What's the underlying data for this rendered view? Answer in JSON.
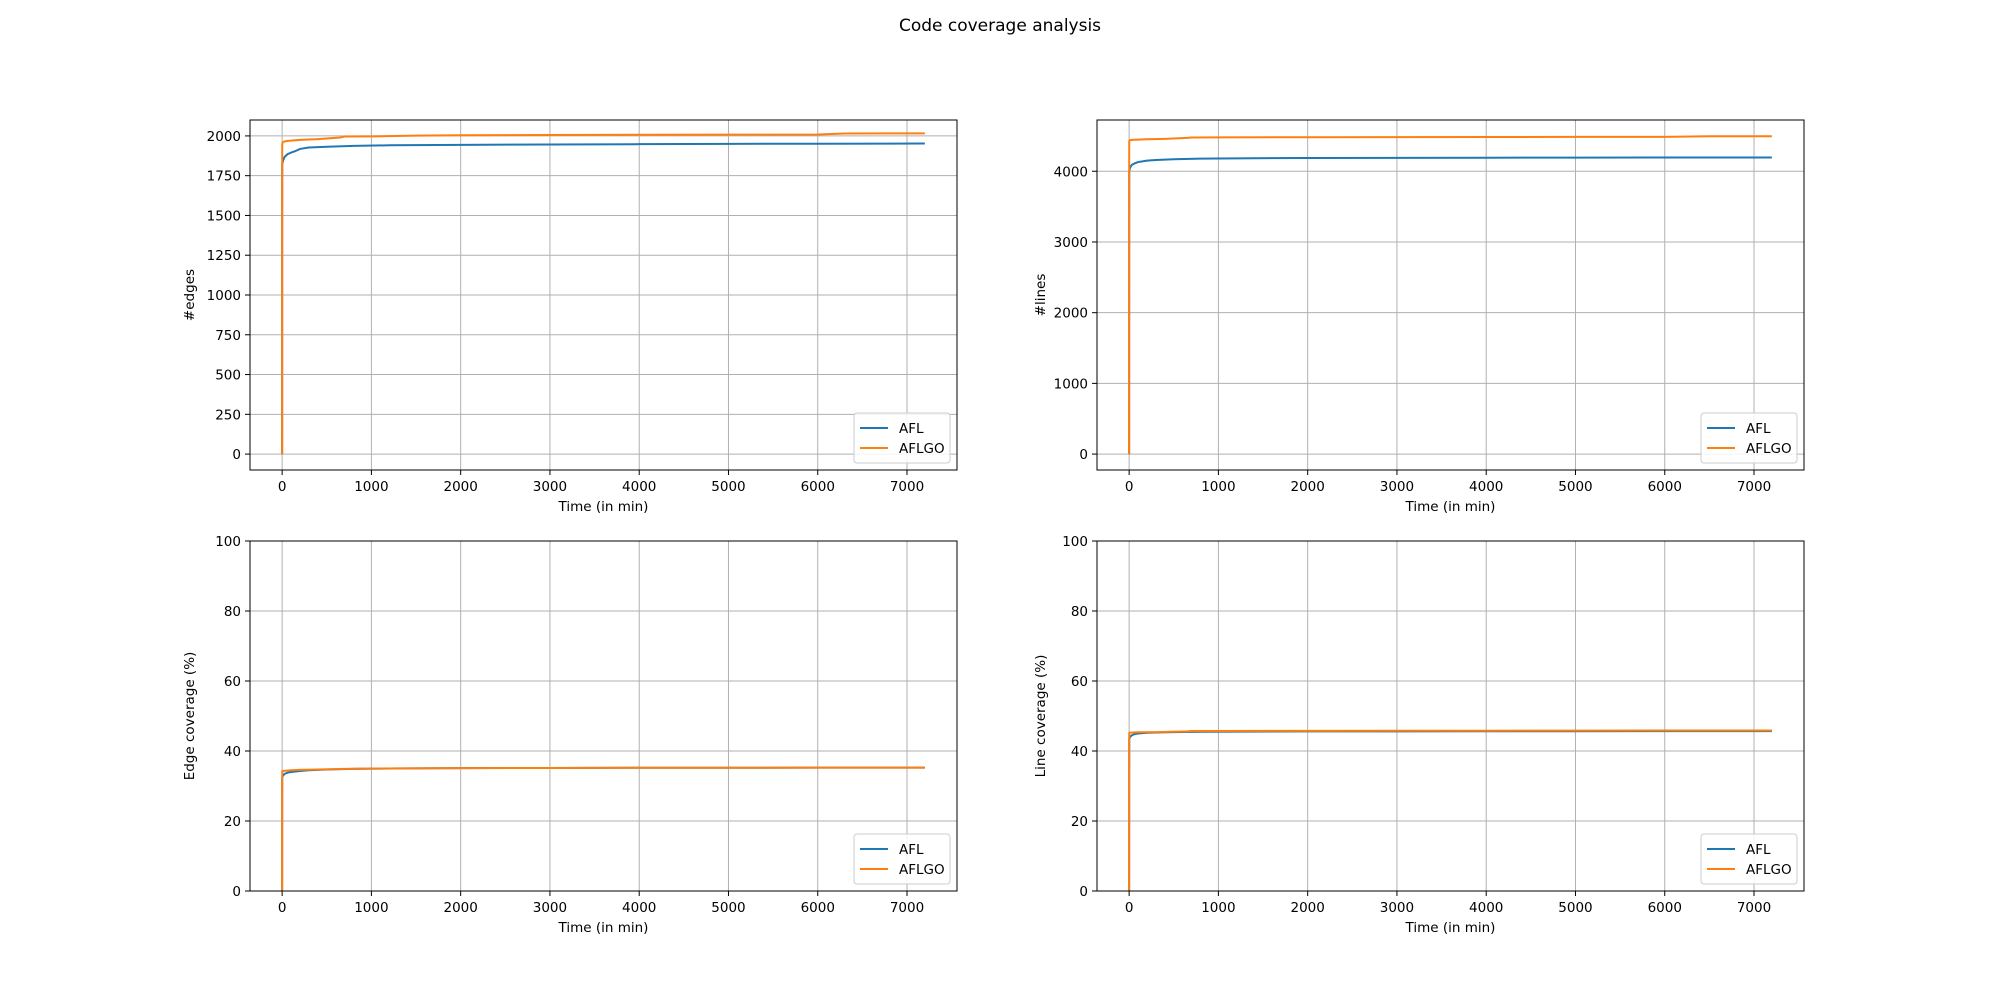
{
  "figure": {
    "suptitle": "Code coverage analysis"
  },
  "colors": {
    "AFL": "#1f77b4",
    "AFLGO": "#ff7f0e",
    "grid": "#b0b0b0"
  },
  "chart_data": [
    {
      "type": "line",
      "title": "",
      "xlabel": "Time (in min)",
      "ylabel": "#edges",
      "xlim": [
        -360,
        7560
      ],
      "ylim": [
        -100,
        2100
      ],
      "xticks": [
        0,
        1000,
        2000,
        3000,
        4000,
        5000,
        6000,
        7000
      ],
      "yticks": [
        0,
        250,
        500,
        750,
        1000,
        1250,
        1500,
        1750,
        2000
      ],
      "grid": true,
      "legend": "lower-right",
      "series": [
        {
          "name": "AFL",
          "x": [
            0,
            0.5,
            1,
            10,
            30,
            60,
            100,
            150,
            200,
            300,
            500,
            800,
            1200,
            2000,
            3000,
            4000,
            5000,
            6000,
            7200
          ],
          "y": [
            0,
            1500,
            1820,
            1845,
            1870,
            1885,
            1895,
            1905,
            1918,
            1927,
            1932,
            1937,
            1941,
            1944,
            1946,
            1948,
            1950,
            1951,
            1952
          ]
        },
        {
          "name": "AFLGO",
          "x": [
            0,
            0.5,
            1,
            10,
            50,
            100,
            200,
            400,
            650,
            700,
            1000,
            1500,
            2000,
            3000,
            4000,
            5000,
            6000,
            6300,
            7200
          ],
          "y": [
            0,
            1800,
            1950,
            1962,
            1968,
            1970,
            1975,
            1980,
            1990,
            1996,
            1997,
            2002,
            2004,
            2006,
            2007,
            2008,
            2009,
            2015,
            2016
          ]
        }
      ]
    },
    {
      "type": "line",
      "title": "",
      "xlabel": "Time (in min)",
      "ylabel": "#lines",
      "xlim": [
        -360,
        7560
      ],
      "ylim": [
        -225,
        4725
      ],
      "xticks": [
        0,
        1000,
        2000,
        3000,
        4000,
        5000,
        6000,
        7000
      ],
      "yticks": [
        0,
        1000,
        2000,
        3000,
        4000
      ],
      "grid": true,
      "legend": "lower-right",
      "series": [
        {
          "name": "AFL",
          "x": [
            0,
            0.5,
            1,
            10,
            30,
            60,
            100,
            150,
            200,
            300,
            500,
            800,
            1200,
            2000,
            3000,
            4000,
            5000,
            6000,
            7200
          ],
          "y": [
            0,
            3000,
            4000,
            4050,
            4090,
            4110,
            4130,
            4140,
            4150,
            4160,
            4170,
            4178,
            4183,
            4188,
            4190,
            4192,
            4193,
            4194,
            4195
          ]
        },
        {
          "name": "AFLGO",
          "x": [
            0,
            0.5,
            1,
            10,
            50,
            100,
            200,
            400,
            650,
            700,
            1000,
            2000,
            3000,
            4000,
            5000,
            6000,
            6500,
            7200
          ],
          "y": [
            0,
            4000,
            4430,
            4440,
            4445,
            4448,
            4452,
            4458,
            4472,
            4478,
            4479,
            4481,
            4483,
            4485,
            4486,
            4487,
            4495,
            4496
          ]
        }
      ]
    },
    {
      "type": "line",
      "title": "",
      "xlabel": "Time (in min)",
      "ylabel": "Edge coverage (%)",
      "xlim": [
        -360,
        7560
      ],
      "ylim": [
        0,
        100
      ],
      "xticks": [
        0,
        1000,
        2000,
        3000,
        4000,
        5000,
        6000,
        7000
      ],
      "yticks": [
        0,
        20,
        40,
        60,
        80,
        100
      ],
      "grid": true,
      "legend": "lower-right",
      "series": [
        {
          "name": "AFL",
          "x": [
            0,
            0.5,
            1,
            10,
            30,
            60,
            100,
            200,
            300,
            500,
            800,
            1200,
            2000,
            3000,
            4000,
            5000,
            6000,
            7200
          ],
          "y": [
            0,
            25,
            32.5,
            33.0,
            33.5,
            33.8,
            34.0,
            34.3,
            34.5,
            34.7,
            34.9,
            35.0,
            35.1,
            35.15,
            35.2,
            35.22,
            35.24,
            35.25
          ]
        },
        {
          "name": "AFLGO",
          "x": [
            0,
            0.5,
            1,
            10,
            50,
            100,
            200,
            400,
            700,
            1000,
            2000,
            3000,
            4000,
            5000,
            6000,
            7200
          ],
          "y": [
            0,
            30,
            34.2,
            34.3,
            34.4,
            34.5,
            34.6,
            34.7,
            34.9,
            35.0,
            35.1,
            35.15,
            35.2,
            35.22,
            35.24,
            35.25
          ]
        }
      ]
    },
    {
      "type": "line",
      "title": "",
      "xlabel": "Time (in min)",
      "ylabel": "Line coverage (%)",
      "xlim": [
        -360,
        7560
      ],
      "ylim": [
        0,
        100
      ],
      "xticks": [
        0,
        1000,
        2000,
        3000,
        4000,
        5000,
        6000,
        7000
      ],
      "yticks": [
        0,
        20,
        40,
        60,
        80,
        100
      ],
      "grid": true,
      "legend": "lower-right",
      "series": [
        {
          "name": "AFL",
          "x": [
            0,
            0.5,
            1,
            10,
            30,
            60,
            100,
            200,
            300,
            500,
            800,
            1200,
            2000,
            3000,
            4000,
            5000,
            6000,
            7200
          ],
          "y": [
            0,
            30,
            43.5,
            44.0,
            44.5,
            44.8,
            45.0,
            45.2,
            45.3,
            45.4,
            45.5,
            45.55,
            45.6,
            45.62,
            45.64,
            45.66,
            45.67,
            45.68
          ]
        },
        {
          "name": "AFLGO",
          "x": [
            0,
            0.5,
            1,
            10,
            50,
            100,
            300,
            650,
            700,
            1000,
            2000,
            3000,
            4000,
            5000,
            6000,
            7200
          ],
          "y": [
            0,
            40,
            45.2,
            45.25,
            45.3,
            45.35,
            45.4,
            45.6,
            45.7,
            45.72,
            45.75,
            45.77,
            45.8,
            45.82,
            45.85,
            45.87
          ]
        }
      ]
    }
  ]
}
